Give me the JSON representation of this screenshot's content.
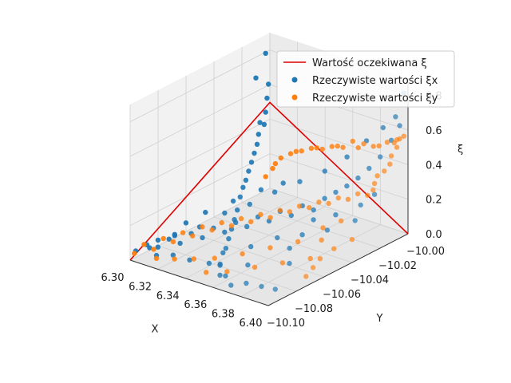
{
  "chart_data": {
    "type": "scatter",
    "projection": "3d",
    "xlabel": "X",
    "ylabel": "Y",
    "zlabel": "ξ",
    "xlim": [
      6.3,
      6.4
    ],
    "ylim": [
      -10.1,
      -10.0
    ],
    "zlim": [
      0.0,
      0.9
    ],
    "xticks": [
      "6.30",
      "6.32",
      "6.34",
      "6.36",
      "6.38",
      "6.40"
    ],
    "yticks": [
      "−10.10",
      "−10.08",
      "−10.06",
      "−10.04",
      "−10.02",
      "−10.00"
    ],
    "zticks": [
      "0.0",
      "0.2",
      "0.4",
      "0.6",
      "0.8"
    ],
    "grid": true,
    "legend_position": "top-right",
    "series": [
      {
        "name": "Wartość oczekiwana ξ",
        "kind": "line",
        "color": "#e00000",
        "points": [
          [
            6.3,
            -10.1,
            0.0
          ],
          [
            6.3005,
            -10.0005,
            0.5
          ],
          [
            6.4,
            -10.0,
            0.0
          ]
        ]
      },
      {
        "name": "Rzeczywiste wartości ξx",
        "kind": "scatter",
        "color": "#1f77b4",
        "points": [
          [
            6.302,
            -10.098,
            0.05
          ],
          [
            6.306,
            -10.094,
            0.08
          ],
          [
            6.31,
            -10.09,
            0.06
          ],
          [
            6.314,
            -10.086,
            0.1
          ],
          [
            6.318,
            -10.082,
            0.07
          ],
          [
            6.322,
            -10.078,
            0.12
          ],
          [
            6.326,
            -10.074,
            0.09
          ],
          [
            6.33,
            -10.07,
            0.14
          ],
          [
            6.334,
            -10.066,
            0.11
          ],
          [
            6.338,
            -10.062,
            0.16
          ],
          [
            6.342,
            -10.058,
            0.13
          ],
          [
            6.346,
            -10.054,
            0.18
          ],
          [
            6.35,
            -10.05,
            0.15
          ],
          [
            6.354,
            -10.046,
            0.2
          ],
          [
            6.358,
            -10.042,
            0.17
          ],
          [
            6.362,
            -10.038,
            0.22
          ],
          [
            6.366,
            -10.034,
            0.19
          ],
          [
            6.37,
            -10.03,
            0.25
          ],
          [
            6.374,
            -10.026,
            0.28
          ],
          [
            6.378,
            -10.022,
            0.31
          ],
          [
            6.382,
            -10.018,
            0.35
          ],
          [
            6.386,
            -10.014,
            0.4
          ],
          [
            6.39,
            -10.01,
            0.46
          ],
          [
            6.394,
            -10.006,
            0.55
          ],
          [
            6.397,
            -10.003,
            0.63
          ],
          [
            6.304,
            -10.09,
            0.04
          ],
          [
            6.312,
            -10.08,
            0.09
          ],
          [
            6.32,
            -10.07,
            0.12
          ],
          [
            6.328,
            -10.06,
            0.18
          ],
          [
            6.336,
            -10.05,
            0.21
          ],
          [
            6.344,
            -10.04,
            0.26
          ],
          [
            6.352,
            -10.03,
            0.3
          ],
          [
            6.36,
            -10.02,
            0.34
          ],
          [
            6.368,
            -10.012,
            0.41
          ],
          [
            6.376,
            -10.006,
            0.5
          ],
          [
            6.384,
            -10.002,
            0.58
          ],
          [
            6.392,
            -10.001,
            0.66
          ],
          [
            6.399,
            -10.002,
            0.82
          ],
          [
            6.3,
            -10.01,
            0.68
          ],
          [
            6.301,
            -10.004,
            0.8
          ],
          [
            6.302,
            -10.003,
            0.62
          ],
          [
            6.303,
            -10.005,
            0.55
          ],
          [
            6.304,
            -10.007,
            0.48
          ],
          [
            6.305,
            -10.009,
            0.42
          ],
          [
            6.306,
            -10.013,
            0.45
          ],
          [
            6.308,
            -10.016,
            0.4
          ],
          [
            6.31,
            -10.019,
            0.36
          ],
          [
            6.312,
            -10.023,
            0.33
          ],
          [
            6.314,
            -10.027,
            0.3
          ],
          [
            6.316,
            -10.031,
            0.27
          ],
          [
            6.318,
            -10.035,
            0.24
          ],
          [
            6.32,
            -10.039,
            0.22
          ],
          [
            6.324,
            -10.045,
            0.2
          ],
          [
            6.328,
            -10.051,
            0.16
          ],
          [
            6.332,
            -10.057,
            0.14
          ],
          [
            6.336,
            -10.063,
            0.12
          ],
          [
            6.34,
            -10.069,
            0.1
          ],
          [
            6.344,
            -10.075,
            0.08
          ],
          [
            6.348,
            -10.081,
            0.09
          ],
          [
            6.352,
            -10.087,
            0.06
          ],
          [
            6.356,
            -10.091,
            0.08
          ],
          [
            6.36,
            -10.095,
            0.05
          ],
          [
            6.366,
            -10.097,
            0.07
          ],
          [
            6.372,
            -10.099,
            0.04
          ],
          [
            6.38,
            -10.096,
            0.06
          ],
          [
            6.388,
            -10.093,
            0.05
          ],
          [
            6.395,
            -10.09,
            0.04
          ],
          [
            6.385,
            -10.07,
            0.08
          ],
          [
            6.375,
            -10.06,
            0.1
          ],
          [
            6.365,
            -10.08,
            0.06
          ],
          [
            6.355,
            -10.068,
            0.09
          ],
          [
            6.345,
            -10.088,
            0.05
          ],
          [
            6.335,
            -10.092,
            0.06
          ],
          [
            6.325,
            -10.094,
            0.07
          ],
          [
            6.315,
            -10.096,
            0.05
          ],
          [
            6.372,
            -10.048,
            0.12
          ],
          [
            6.362,
            -10.056,
            0.11
          ],
          [
            6.382,
            -10.04,
            0.14
          ],
          [
            6.392,
            -10.03,
            0.18
          ],
          [
            6.396,
            -10.02,
            0.3
          ],
          [
            6.39,
            -10.024,
            0.24
          ],
          [
            6.38,
            -10.032,
            0.19
          ],
          [
            6.37,
            -10.038,
            0.16
          ],
          [
            6.34,
            -10.03,
            0.26
          ],
          [
            6.33,
            -10.036,
            0.22
          ],
          [
            6.32,
            -10.046,
            0.17
          ],
          [
            6.31,
            -10.056,
            0.12
          ],
          [
            6.306,
            -10.066,
            0.09
          ],
          [
            6.308,
            -10.076,
            0.07
          ],
          [
            6.304,
            -10.084,
            0.06
          ]
        ]
      },
      {
        "name": "Rzeczywiste wartości ξy",
        "kind": "scatter",
        "color": "#ff7f0e",
        "points": [
          [
            6.302,
            -10.099,
            0.04
          ],
          [
            6.306,
            -10.096,
            0.09
          ],
          [
            6.31,
            -10.093,
            0.06
          ],
          [
            6.314,
            -10.09,
            0.12
          ],
          [
            6.318,
            -10.087,
            0.1
          ],
          [
            6.322,
            -10.084,
            0.15
          ],
          [
            6.326,
            -10.081,
            0.13
          ],
          [
            6.33,
            -10.078,
            0.18
          ],
          [
            6.334,
            -10.075,
            0.16
          ],
          [
            6.338,
            -10.072,
            0.2
          ],
          [
            6.342,
            -10.069,
            0.18
          ],
          [
            6.346,
            -10.066,
            0.22
          ],
          [
            6.35,
            -10.063,
            0.2
          ],
          [
            6.354,
            -10.06,
            0.24
          ],
          [
            6.358,
            -10.057,
            0.22
          ],
          [
            6.362,
            -10.054,
            0.26
          ],
          [
            6.366,
            -10.051,
            0.25
          ],
          [
            6.37,
            -10.048,
            0.28
          ],
          [
            6.374,
            -10.045,
            0.27
          ],
          [
            6.378,
            -10.042,
            0.3
          ],
          [
            6.382,
            -10.039,
            0.29
          ],
          [
            6.386,
            -10.036,
            0.32
          ],
          [
            6.39,
            -10.033,
            0.31
          ],
          [
            6.394,
            -10.03,
            0.34
          ],
          [
            6.398,
            -10.027,
            0.33
          ],
          [
            6.399,
            -10.024,
            0.35
          ],
          [
            6.397,
            -10.021,
            0.37
          ],
          [
            6.396,
            -10.018,
            0.4
          ],
          [
            6.398,
            -10.015,
            0.42
          ],
          [
            6.399,
            -10.012,
            0.45
          ],
          [
            6.397,
            -10.009,
            0.48
          ],
          [
            6.398,
            -10.006,
            0.52
          ],
          [
            6.396,
            -10.004,
            0.55
          ],
          [
            6.399,
            -10.002,
            0.57
          ],
          [
            6.395,
            -10.001,
            0.54
          ],
          [
            6.39,
            -10.0,
            0.5
          ],
          [
            6.385,
            -10.0,
            0.49
          ],
          [
            6.38,
            -10.001,
            0.46
          ],
          [
            6.375,
            -10.0,
            0.44
          ],
          [
            6.37,
            -10.002,
            0.45
          ],
          [
            6.365,
            -10.001,
            0.41
          ],
          [
            6.36,
            -10.0,
            0.43
          ],
          [
            6.355,
            -10.002,
            0.39
          ],
          [
            6.35,
            -10.001,
            0.38
          ],
          [
            6.345,
            -10.0,
            0.36
          ],
          [
            6.34,
            -10.002,
            0.34
          ],
          [
            6.335,
            -10.001,
            0.33
          ],
          [
            6.33,
            -10.0,
            0.31
          ],
          [
            6.325,
            -10.002,
            0.29
          ],
          [
            6.32,
            -10.001,
            0.27
          ],
          [
            6.315,
            -10.0,
            0.24
          ],
          [
            6.31,
            -10.002,
            0.21
          ],
          [
            6.305,
            -10.001,
            0.16
          ],
          [
            6.302,
            -10.0,
            0.12
          ],
          [
            6.3,
            -10.003,
            0.08
          ],
          [
            6.39,
            -10.06,
            0.08
          ],
          [
            6.38,
            -10.07,
            0.07
          ],
          [
            6.37,
            -10.08,
            0.06
          ],
          [
            6.36,
            -10.09,
            0.05
          ],
          [
            6.35,
            -10.095,
            0.04
          ],
          [
            6.392,
            -10.04,
            0.22
          ],
          [
            6.388,
            -10.05,
            0.14
          ],
          [
            6.384,
            -10.045,
            0.18
          ],
          [
            6.376,
            -10.055,
            0.12
          ],
          [
            6.366,
            -10.065,
            0.1
          ],
          [
            6.356,
            -10.075,
            0.08
          ],
          [
            6.346,
            -10.085,
            0.07
          ],
          [
            6.336,
            -10.09,
            0.06
          ],
          [
            6.326,
            -10.094,
            0.05
          ],
          [
            6.316,
            -10.097,
            0.04
          ],
          [
            6.398,
            -10.038,
            0.12
          ],
          [
            6.395,
            -10.048,
            0.1
          ],
          [
            6.393,
            -10.056,
            0.07
          ],
          [
            6.396,
            -10.064,
            0.06
          ],
          [
            6.399,
            -10.072,
            0.05
          ]
        ]
      }
    ]
  }
}
